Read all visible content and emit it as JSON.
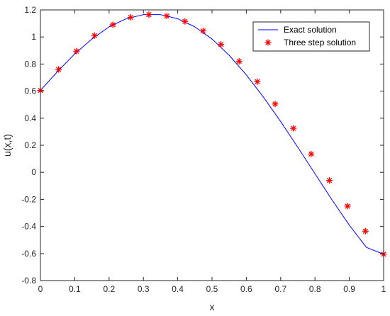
{
  "chart_data": {
    "type": "line",
    "xlabel": "x",
    "ylabel": "u(x,t)",
    "xlim": [
      0,
      1
    ],
    "ylim": [
      -0.8,
      1.2
    ],
    "xticks": [
      0,
      0.1,
      0.2,
      0.3,
      0.4,
      0.5,
      0.6,
      0.7,
      0.8,
      0.9,
      1
    ],
    "yticks": [
      -0.8,
      -0.6,
      -0.4,
      -0.2,
      0,
      0.2,
      0.4,
      0.6,
      0.8,
      1,
      1.2
    ],
    "xtick_labels": [
      "0",
      "0.1",
      "0.2",
      "0.3",
      "0.4",
      "0.5",
      "0.6",
      "0.7",
      "0.8",
      "0.9",
      "1"
    ],
    "ytick_labels": [
      "-0.8",
      "-0.6",
      "-0.4",
      "-0.2",
      "0",
      "0.2",
      "0.4",
      "0.6",
      "0.8",
      "1",
      "1.2"
    ],
    "grid": false,
    "legend_position": "top-right",
    "series": [
      {
        "name": "Exact solution",
        "style": "line",
        "color": "#0000ff",
        "x": [
          0,
          0.05,
          0.1,
          0.15,
          0.2,
          0.25,
          0.3,
          0.35,
          0.4,
          0.45,
          0.5,
          0.55,
          0.6,
          0.65,
          0.7,
          0.75,
          0.8,
          0.85,
          0.9,
          0.95,
          1.0
        ],
        "y": [
          0.605,
          0.745,
          0.875,
          0.985,
          1.075,
          1.135,
          1.165,
          1.165,
          1.135,
          1.075,
          0.985,
          0.865,
          0.72,
          0.555,
          0.375,
          0.185,
          -0.01,
          -0.205,
          -0.39,
          -0.555,
          -0.605
        ]
      },
      {
        "name": "Three step solution",
        "style": "marker",
        "marker": "asterisk",
        "color": "#ff0000",
        "x": [
          0,
          0.053,
          0.105,
          0.158,
          0.211,
          0.263,
          0.316,
          0.368,
          0.421,
          0.474,
          0.526,
          0.579,
          0.632,
          0.684,
          0.737,
          0.789,
          0.842,
          0.895,
          0.947,
          1.0
        ],
        "y": [
          0.605,
          0.76,
          0.895,
          1.01,
          1.09,
          1.145,
          1.165,
          1.155,
          1.115,
          1.045,
          0.945,
          0.82,
          0.67,
          0.505,
          0.325,
          0.135,
          -0.06,
          -0.25,
          -0.435,
          -0.605
        ]
      }
    ]
  }
}
